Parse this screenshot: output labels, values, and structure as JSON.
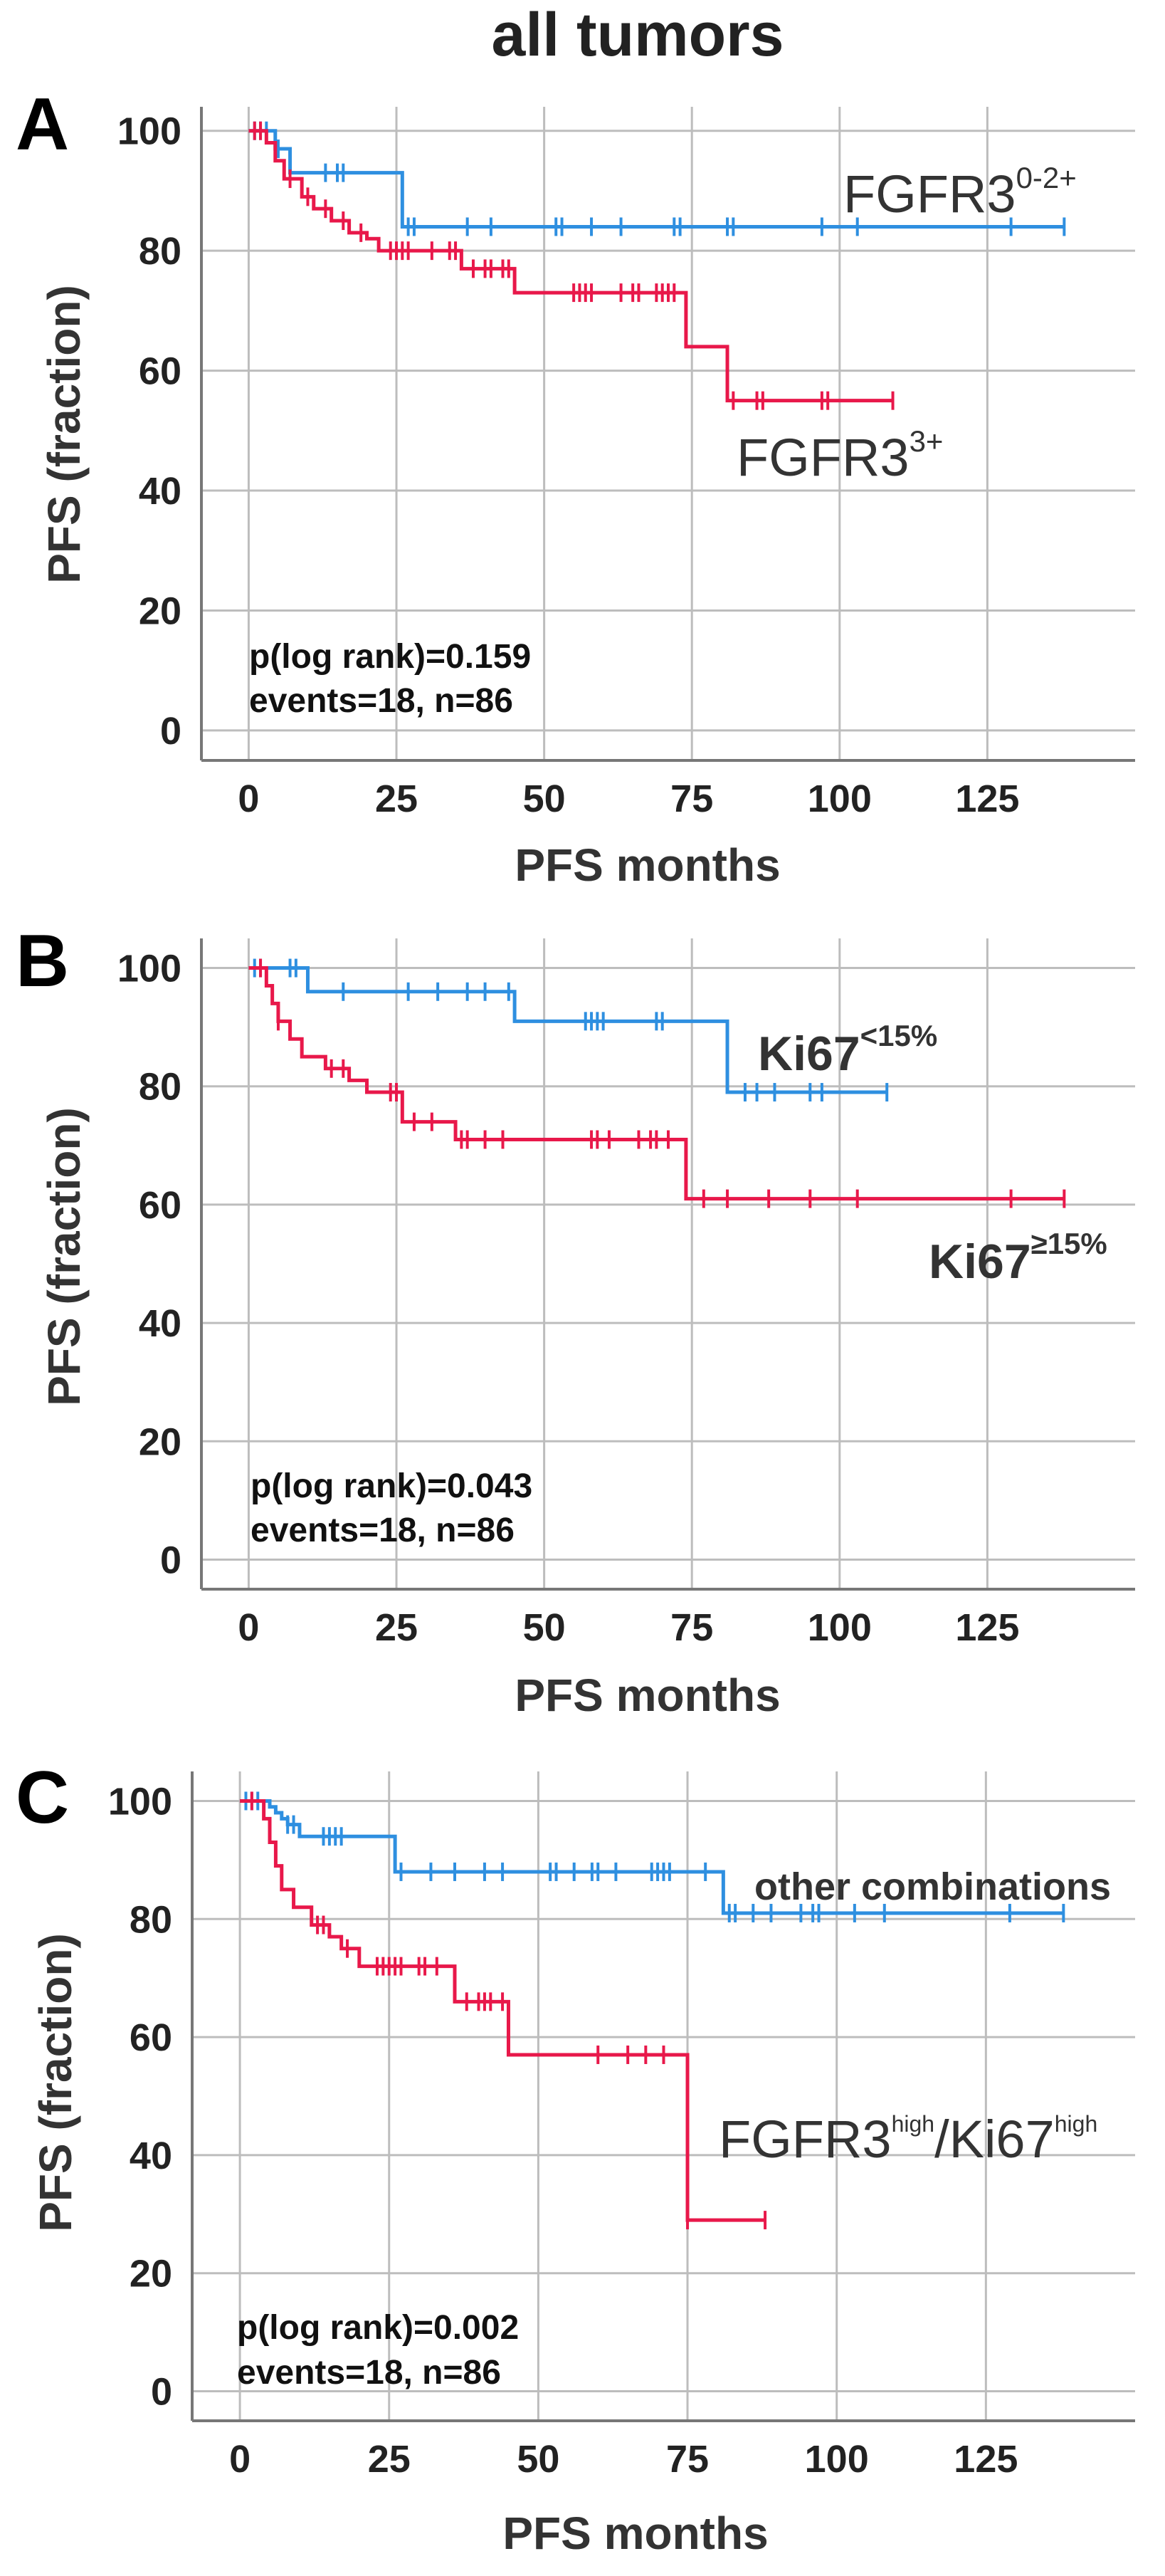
{
  "title": "all tumors",
  "colors": {
    "blue": "#2E8FE0",
    "red": "#E8184A",
    "grid": "#BDBDBD",
    "axis": "#777777"
  },
  "chart_data": [
    {
      "type": "line",
      "panel": "A",
      "xlabel": "PFS months",
      "ylabel": "PFS (fraction)",
      "xticks": [
        "0",
        "25",
        "50",
        "75",
        "100",
        "125"
      ],
      "yticks": [
        "100",
        "80",
        "60",
        "40",
        "20",
        "0"
      ],
      "xlim": [
        -8,
        150
      ],
      "ylim": [
        -5,
        104
      ],
      "stat_line1": "p(log rank)=0.159",
      "stat_line2": "events=18, n=86",
      "series": [
        {
          "name": "FGFR3 0-2+",
          "label_main": "FGFR3",
          "label_sup": "0-2+",
          "color": "#2E8FE0",
          "steps": [
            [
              0,
              100
            ],
            [
              4.5,
              97
            ],
            [
              7,
              93
            ],
            [
              26,
              84
            ],
            [
              138,
              84
            ]
          ],
          "censored": [
            1,
            2,
            3,
            5,
            13,
            15,
            16,
            27,
            28,
            37,
            41,
            52,
            53,
            58,
            63,
            72,
            73,
            81,
            82,
            97,
            103,
            129,
            138
          ]
        },
        {
          "name": "FGFR3 3+",
          "label_main": "FGFR3",
          "label_sup": "3+",
          "color": "#E8184A",
          "steps": [
            [
              0,
              100
            ],
            [
              3,
              98
            ],
            [
              4.5,
              95
            ],
            [
              6,
              92
            ],
            [
              9,
              89
            ],
            [
              11,
              87
            ],
            [
              14,
              85
            ],
            [
              17,
              83
            ],
            [
              20,
              82
            ],
            [
              22,
              80
            ],
            [
              36,
              77
            ],
            [
              45,
              73
            ],
            [
              74,
              64
            ],
            [
              81,
              55
            ],
            [
              109,
              55
            ]
          ],
          "censored": [
            1,
            2,
            7,
            10,
            13,
            16,
            19,
            24,
            25,
            26,
            27,
            31,
            34,
            35,
            38,
            40,
            41,
            43,
            44,
            55,
            56,
            57,
            58,
            63,
            65,
            66,
            69,
            70,
            71,
            72,
            82,
            86,
            87,
            97,
            98,
            109
          ]
        }
      ]
    },
    {
      "type": "line",
      "panel": "B",
      "xlabel": "PFS months",
      "ylabel": "PFS (fraction)",
      "xticks": [
        "0",
        "25",
        "50",
        "75",
        "100",
        "125"
      ],
      "yticks": [
        "100",
        "80",
        "60",
        "40",
        "20",
        "0"
      ],
      "xlim": [
        -8,
        150
      ],
      "ylim": [
        -5,
        105
      ],
      "stat_line1": "p(log rank)=0.043",
      "stat_line2": "events=18, n=86",
      "series": [
        {
          "name": "Ki67 <15%",
          "label_main": "Ki67",
          "label_sup": "<15%",
          "color": "#2E8FE0",
          "steps": [
            [
              0,
              100
            ],
            [
              10,
              96
            ],
            [
              45,
              91
            ],
            [
              81,
              79
            ],
            [
              108,
              79
            ]
          ],
          "censored": [
            1,
            2,
            7,
            8,
            16,
            27,
            32,
            37,
            40,
            44,
            57,
            58,
            59,
            60,
            69,
            70,
            84,
            86,
            89,
            95,
            97,
            108
          ]
        },
        {
          "name": "Ki67 >=15%",
          "label_main": "Ki67",
          "label_sup": "≥15%",
          "color": "#E8184A",
          "steps": [
            [
              0,
              100
            ],
            [
              3,
              97
            ],
            [
              4,
              94
            ],
            [
              5,
              91
            ],
            [
              7,
              88
            ],
            [
              9,
              85
            ],
            [
              13,
              83
            ],
            [
              17,
              81
            ],
            [
              20,
              79
            ],
            [
              26,
              74
            ],
            [
              35,
              71
            ],
            [
              74,
              61
            ],
            [
              138,
              61
            ]
          ],
          "censored": [
            2,
            5,
            14,
            16,
            24,
            25,
            28,
            31,
            36,
            37,
            40,
            43,
            58,
            59,
            61,
            66,
            68,
            69,
            71,
            77,
            81,
            88,
            95,
            103,
            129,
            138
          ]
        }
      ]
    },
    {
      "type": "line",
      "panel": "C",
      "xlabel": "PFS months",
      "ylabel": "PFS (fraction)",
      "xticks": [
        "0",
        "25",
        "50",
        "75",
        "100",
        "125"
      ],
      "yticks": [
        "100",
        "80",
        "60",
        "40",
        "20",
        "0"
      ],
      "xlim": [
        -8,
        150
      ],
      "ylim": [
        -5,
        105
      ],
      "stat_line1": "p(log rank)=0.002",
      "stat_line2": "events=18, n=86",
      "series": [
        {
          "name": "other combinations",
          "label_main": "other combinations",
          "color": "#2E8FE0",
          "steps": [
            [
              0,
              100
            ],
            [
              5,
              99
            ],
            [
              6,
              98
            ],
            [
              7,
              97
            ],
            [
              8,
              96
            ],
            [
              10,
              94
            ],
            [
              26,
              88
            ],
            [
              81,
              81
            ],
            [
              138,
              81
            ]
          ],
          "censored": [
            1,
            2,
            3,
            8,
            9,
            14,
            15,
            16,
            17,
            27,
            32,
            36,
            41,
            44,
            52,
            53,
            56,
            59,
            60,
            63,
            69,
            70,
            71,
            72,
            78,
            82,
            83,
            86,
            89,
            94,
            96,
            97,
            103,
            108,
            129,
            138
          ]
        },
        {
          "name": "FGFR3high/Ki67high",
          "label_main": "FGFR3",
          "label_sup": "high",
          "label_main2": "/Ki67",
          "label_sup2": "high",
          "color": "#E8184A",
          "steps": [
            [
              0,
              100
            ],
            [
              4,
              97
            ],
            [
              5,
              93
            ],
            [
              6,
              89
            ],
            [
              7,
              85
            ],
            [
              9,
              82
            ],
            [
              12,
              79
            ],
            [
              15,
              77
            ],
            [
              17,
              75
            ],
            [
              20,
              72
            ],
            [
              36,
              66
            ],
            [
              45,
              57
            ],
            [
              75,
              29
            ],
            [
              88,
              29
            ]
          ],
          "censored": [
            2,
            13,
            14,
            18,
            23,
            24,
            25,
            26,
            27,
            30,
            31,
            33,
            38,
            40,
            41,
            42,
            44,
            60,
            65,
            68,
            71,
            75,
            88
          ]
        }
      ]
    }
  ]
}
